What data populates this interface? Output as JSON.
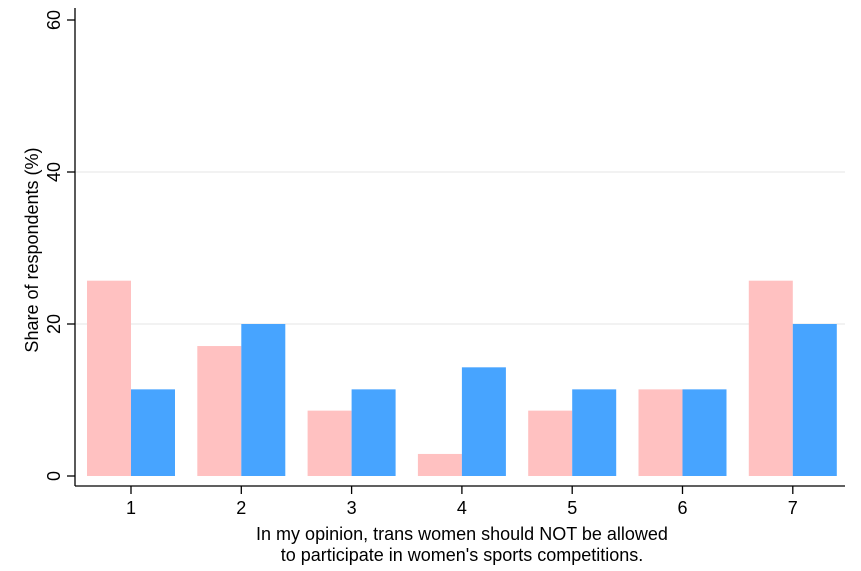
{
  "chart_data": {
    "type": "bar",
    "title": "",
    "xlabel_lines": [
      "In my opinion, trans women should NOT be allowed",
      "to participate in women's sports competitions."
    ],
    "ylabel": "Share of respondents (%)",
    "categories": [
      "1",
      "2",
      "3",
      "4",
      "5",
      "6",
      "7"
    ],
    "series": [
      {
        "values": [
          25.7,
          17.1,
          8.6,
          2.9,
          8.6,
          11.4,
          25.7
        ]
      },
      {
        "values": [
          11.4,
          20.0,
          11.4,
          14.3,
          11.4,
          11.4,
          20.0
        ]
      }
    ],
    "ylim": [
      0,
      60
    ],
    "yticks": [
      "0",
      "20",
      "40",
      "60"
    ],
    "grid": true,
    "colors": [
      "#FFC1C1",
      "#47A4FF"
    ],
    "gridColor": "#EEEEEE"
  }
}
